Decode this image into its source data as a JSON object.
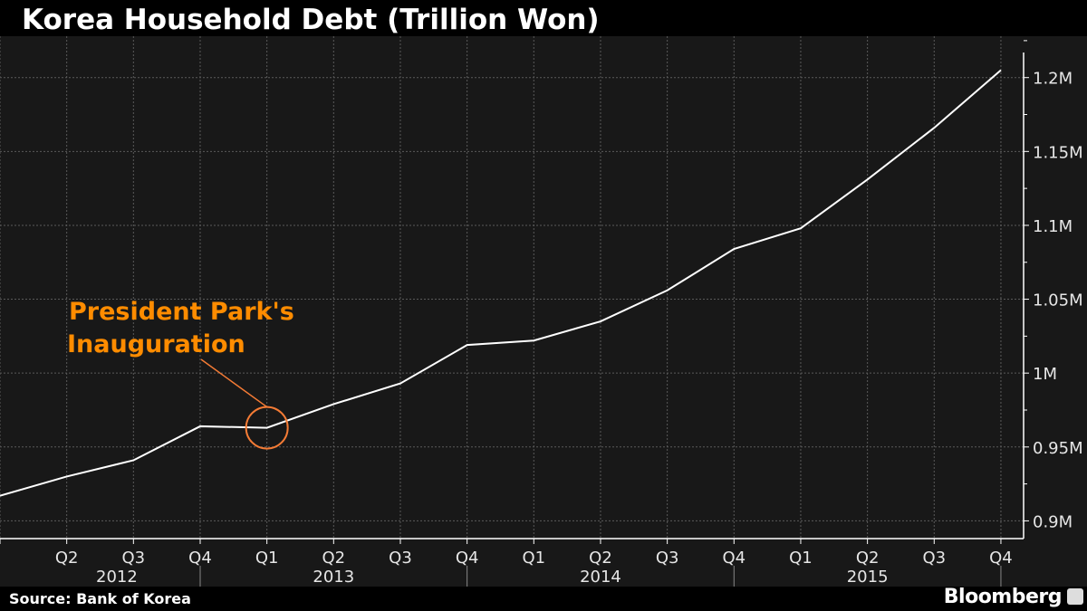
{
  "chart_data": {
    "type": "line",
    "title": "Korea Household Debt (Trillion Won)",
    "source": "Source: Bank of Korea",
    "brand": "Bloomberg",
    "xlabel": "",
    "ylabel": "",
    "quarters": [
      "Q1",
      "Q2",
      "Q3",
      "Q4",
      "Q1",
      "Q2",
      "Q3",
      "Q4",
      "Q1",
      "Q2",
      "Q3",
      "Q4",
      "Q1",
      "Q2",
      "Q3",
      "Q4"
    ],
    "x_tick_labels": [
      "",
      "Q2",
      "Q3",
      "Q4",
      "Q1",
      "Q2",
      "Q3",
      "Q4",
      "Q1",
      "Q2",
      "Q3",
      "Q4",
      "Q1",
      "Q2",
      "Q3",
      "Q4"
    ],
    "years": [
      {
        "label": "2012",
        "start": 0,
        "end": 3
      },
      {
        "label": "2013",
        "start": 4,
        "end": 7
      },
      {
        "label": "2014",
        "start": 8,
        "end": 11
      },
      {
        "label": "2015",
        "start": 12,
        "end": 15
      }
    ],
    "series": [
      {
        "name": "Household Debt",
        "color": "#ffffff",
        "values": [
          0.917,
          0.93,
          0.941,
          0.964,
          0.963,
          0.979,
          0.993,
          1.019,
          1.022,
          1.035,
          1.056,
          1.084,
          1.098,
          1.131,
          1.166,
          1.205
        ]
      }
    ],
    "yticks": [
      0.9,
      0.95,
      1.0,
      1.05,
      1.1,
      1.15,
      1.2
    ],
    "ytick_labels": [
      "0.9M",
      "0.95M",
      "1M",
      "1.05M",
      "1.1M",
      "1.15M",
      "1.2M"
    ],
    "ylim": [
      0.888,
      1.228
    ],
    "xlim": [
      0,
      15.34
    ],
    "grid": true,
    "annotation": {
      "text_line1": "President Park's",
      "text_line2": "Inauguration",
      "index": 4,
      "color": "#ff8c00",
      "circle_color": "#f47b35"
    },
    "colors": {
      "background": "#181818",
      "grid": "#5a5a5a",
      "axis": "#ffffff",
      "text": "#e6e6e6"
    }
  }
}
